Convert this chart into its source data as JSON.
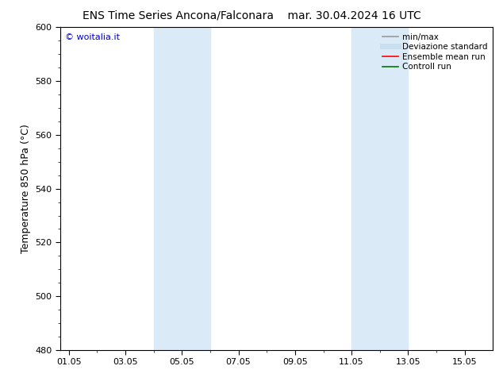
{
  "title_left": "ENS Time Series Ancona/Falconara",
  "title_right": "mar. 30.04.2024 16 UTC",
  "ylabel": "Temperature 850 hPa (°C)",
  "ylim": [
    480,
    600
  ],
  "yticks": [
    480,
    500,
    520,
    540,
    560,
    580,
    600
  ],
  "xtick_labels": [
    "01.05",
    "03.05",
    "05.05",
    "07.05",
    "09.05",
    "11.05",
    "13.05",
    "15.05"
  ],
  "xtick_positions": [
    0,
    2,
    4,
    6,
    8,
    10,
    12,
    14
  ],
  "x_min": -0.3,
  "x_max": 15.0,
  "shaded_bands": [
    {
      "x_start": 3.0,
      "x_end": 5.0,
      "color": "#daeaf7"
    },
    {
      "x_start": 10.0,
      "x_end": 12.0,
      "color": "#daeaf7"
    }
  ],
  "watermark_text": "© woitalia.it",
  "watermark_color": "#0000cc",
  "background_color": "#ffffff",
  "legend_items": [
    {
      "label": "min/max",
      "color": "#999999",
      "lw": 1.2,
      "style": "solid"
    },
    {
      "label": "Deviazione standard",
      "color": "#c8dff0",
      "lw": 5,
      "style": "solid"
    },
    {
      "label": "Ensemble mean run",
      "color": "#ff0000",
      "lw": 1.2,
      "style": "solid"
    },
    {
      "label": "Controll run",
      "color": "#007700",
      "lw": 1.2,
      "style": "solid"
    }
  ],
  "title_fontsize": 10,
  "ylabel_fontsize": 9,
  "tick_fontsize": 8,
  "legend_fontsize": 7.5,
  "watermark_fontsize": 8
}
